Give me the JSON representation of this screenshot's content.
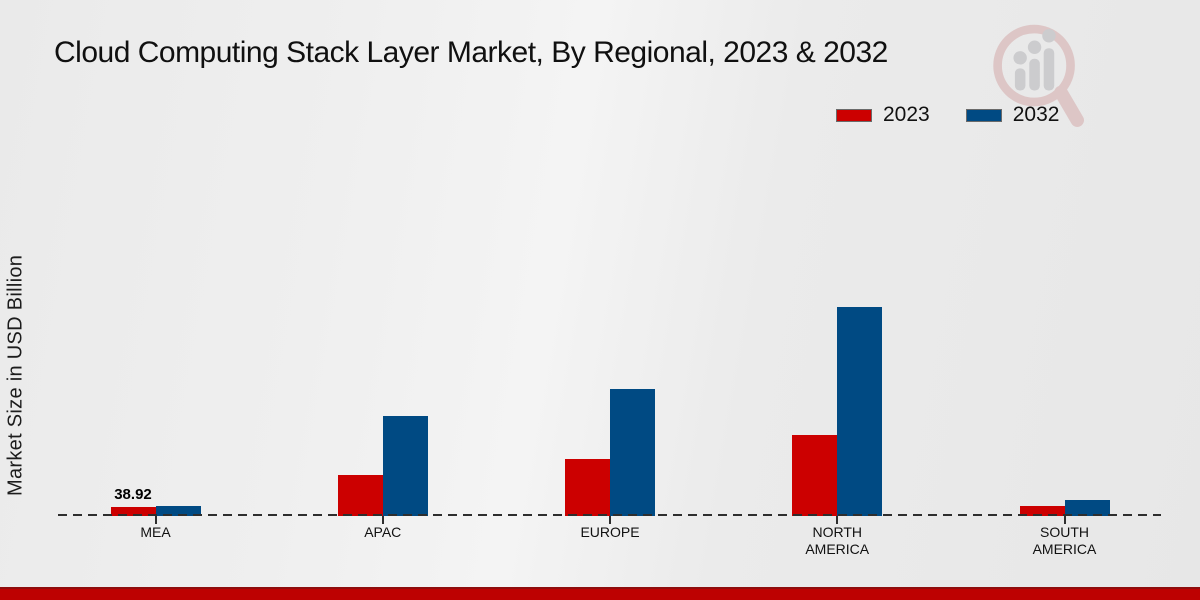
{
  "title": "Cloud Computing Stack Layer Market, By Regional, 2023 & 2032",
  "ylabel": "Market Size in USD Billion",
  "legend": [
    {
      "label": "2023",
      "color": "#cc0000"
    },
    {
      "label": "2032",
      "color": "#004a83"
    }
  ],
  "colors": {
    "series_2023": "#cc0000",
    "series_2032": "#004a83",
    "bottom_band": "#bd0101",
    "baseline": "#2e2e2e",
    "background": "#ececec",
    "watermark_ring": "#dcc3c3",
    "watermark_bars": "#c9c9cc"
  },
  "icons": {
    "watermark": "magnifier-bar-chart-logo"
  },
  "chart_data": {
    "type": "bar",
    "title": "Cloud Computing Stack Layer Market, By Regional, 2023 & 2032",
    "xlabel": "",
    "ylabel": "Market Size in USD Billion",
    "categories": [
      "MEA",
      "APAC",
      "EUROPE",
      "NORTH AMERICA",
      "SOUTH AMERICA"
    ],
    "series": [
      {
        "name": "2023",
        "color": "#cc0000",
        "values": [
          38.92,
          180,
          254,
          357,
          46
        ]
      },
      {
        "name": "2032",
        "color": "#004a83",
        "values": [
          46.3,
          440,
          560,
          923,
          70
        ]
      }
    ],
    "data_labels": [
      {
        "series": "2023",
        "category": "MEA",
        "text": "38.92"
      }
    ],
    "ylim": [
      0,
      950
    ],
    "y_ticks_visible": false,
    "gridlines": false,
    "x_axis_style": "dashed-baseline",
    "legend_position": "top-right"
  }
}
